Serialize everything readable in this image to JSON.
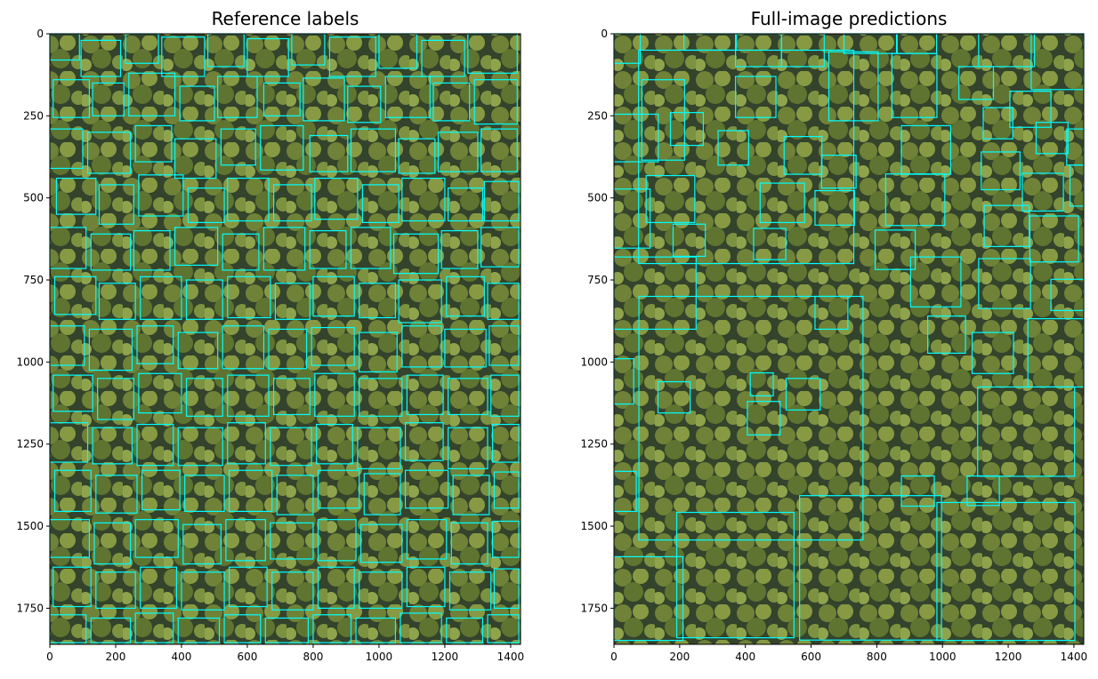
{
  "chart_data": [
    {
      "type": "detection",
      "title": "Reference labels",
      "box_color": "#00ffff",
      "xlim": [
        0,
        1430
      ],
      "ylim": [
        1860,
        0
      ],
      "xticks": [
        0,
        200,
        400,
        600,
        800,
        1000,
        1200,
        1400
      ],
      "yticks": [
        0,
        250,
        500,
        750,
        1000,
        1250,
        1500,
        1750
      ],
      "boxes": [
        [
          0,
          0,
          90,
          80
        ],
        [
          95,
          20,
          120,
          110
        ],
        [
          230,
          0,
          100,
          90
        ],
        [
          340,
          10,
          130,
          120
        ],
        [
          480,
          0,
          110,
          100
        ],
        [
          600,
          15,
          125,
          115
        ],
        [
          735,
          0,
          100,
          95
        ],
        [
          850,
          10,
          140,
          120
        ],
        [
          1000,
          0,
          115,
          105
        ],
        [
          1130,
          20,
          130,
          110
        ],
        [
          1270,
          0,
          150,
          120
        ],
        [
          10,
          140,
          110,
          115
        ],
        [
          130,
          150,
          95,
          100
        ],
        [
          240,
          120,
          140,
          130
        ],
        [
          395,
          160,
          105,
          105
        ],
        [
          510,
          130,
          120,
          125
        ],
        [
          650,
          150,
          110,
          100
        ],
        [
          770,
          135,
          125,
          130
        ],
        [
          905,
          160,
          100,
          110
        ],
        [
          1020,
          130,
          135,
          125
        ],
        [
          1165,
          150,
          110,
          115
        ],
        [
          1290,
          140,
          130,
          135
        ],
        [
          0,
          290,
          100,
          120
        ],
        [
          115,
          300,
          130,
          125
        ],
        [
          260,
          280,
          110,
          110
        ],
        [
          380,
          320,
          125,
          120
        ],
        [
          520,
          290,
          105,
          110
        ],
        [
          640,
          280,
          130,
          135
        ],
        [
          790,
          310,
          115,
          110
        ],
        [
          915,
          290,
          135,
          130
        ],
        [
          1060,
          320,
          110,
          105
        ],
        [
          1180,
          300,
          120,
          120
        ],
        [
          1310,
          290,
          110,
          130
        ],
        [
          20,
          440,
          120,
          110
        ],
        [
          150,
          460,
          105,
          120
        ],
        [
          270,
          430,
          135,
          125
        ],
        [
          420,
          470,
          110,
          105
        ],
        [
          540,
          440,
          125,
          130
        ],
        [
          680,
          460,
          115,
          110
        ],
        [
          805,
          440,
          130,
          125
        ],
        [
          950,
          460,
          110,
          115
        ],
        [
          1070,
          440,
          130,
          130
        ],
        [
          1210,
          470,
          105,
          100
        ],
        [
          1320,
          450,
          105,
          120
        ],
        [
          0,
          590,
          110,
          125
        ],
        [
          125,
          610,
          120,
          110
        ],
        [
          255,
          600,
          110,
          120
        ],
        [
          380,
          590,
          130,
          115
        ],
        [
          525,
          610,
          110,
          110
        ],
        [
          650,
          590,
          125,
          130
        ],
        [
          790,
          600,
          110,
          115
        ],
        [
          915,
          590,
          120,
          125
        ],
        [
          1045,
          610,
          135,
          120
        ],
        [
          1190,
          600,
          110,
          115
        ],
        [
          1310,
          590,
          115,
          120
        ],
        [
          15,
          740,
          125,
          115
        ],
        [
          150,
          760,
          110,
          110
        ],
        [
          275,
          740,
          125,
          130
        ],
        [
          415,
          750,
          110,
          120
        ],
        [
          540,
          740,
          130,
          125
        ],
        [
          685,
          760,
          105,
          110
        ],
        [
          800,
          740,
          125,
          120
        ],
        [
          940,
          760,
          110,
          105
        ],
        [
          1060,
          750,
          130,
          130
        ],
        [
          1205,
          740,
          115,
          120
        ],
        [
          1330,
          760,
          95,
          110
        ],
        [
          0,
          890,
          105,
          120
        ],
        [
          120,
          900,
          130,
          125
        ],
        [
          265,
          890,
          110,
          115
        ],
        [
          390,
          910,
          120,
          110
        ],
        [
          525,
          890,
          125,
          130
        ],
        [
          665,
          900,
          115,
          120
        ],
        [
          795,
          895,
          130,
          115
        ],
        [
          940,
          910,
          115,
          120
        ],
        [
          1070,
          890,
          120,
          125
        ],
        [
          1200,
          900,
          125,
          115
        ],
        [
          1335,
          890,
          90,
          120
        ],
        [
          10,
          1040,
          120,
          110
        ],
        [
          145,
          1050,
          110,
          125
        ],
        [
          270,
          1035,
          130,
          120
        ],
        [
          415,
          1050,
          110,
          115
        ],
        [
          540,
          1040,
          125,
          125
        ],
        [
          680,
          1050,
          110,
          110
        ],
        [
          805,
          1035,
          120,
          130
        ],
        [
          940,
          1050,
          130,
          115
        ],
        [
          1085,
          1040,
          110,
          120
        ],
        [
          1210,
          1050,
          120,
          110
        ],
        [
          1340,
          1040,
          85,
          125
        ],
        [
          0,
          1185,
          115,
          120
        ],
        [
          130,
          1200,
          120,
          110
        ],
        [
          265,
          1190,
          110,
          125
        ],
        [
          390,
          1200,
          135,
          115
        ],
        [
          540,
          1185,
          115,
          125
        ],
        [
          670,
          1200,
          125,
          115
        ],
        [
          810,
          1190,
          110,
          120
        ],
        [
          935,
          1200,
          130,
          125
        ],
        [
          1080,
          1185,
          115,
          115
        ],
        [
          1210,
          1200,
          120,
          125
        ],
        [
          1345,
          1190,
          80,
          115
        ],
        [
          15,
          1330,
          110,
          125
        ],
        [
          140,
          1345,
          125,
          115
        ],
        [
          280,
          1330,
          115,
          120
        ],
        [
          410,
          1345,
          120,
          110
        ],
        [
          545,
          1330,
          130,
          125
        ],
        [
          690,
          1345,
          110,
          120
        ],
        [
          815,
          1330,
          125,
          115
        ],
        [
          955,
          1340,
          110,
          125
        ],
        [
          1080,
          1330,
          130,
          115
        ],
        [
          1225,
          1345,
          110,
          120
        ],
        [
          1350,
          1335,
          75,
          110
        ],
        [
          0,
          1480,
          120,
          115
        ],
        [
          135,
          1490,
          110,
          125
        ],
        [
          260,
          1480,
          130,
          115
        ],
        [
          405,
          1495,
          115,
          120
        ],
        [
          535,
          1480,
          120,
          125
        ],
        [
          670,
          1490,
          130,
          110
        ],
        [
          815,
          1480,
          115,
          125
        ],
        [
          945,
          1495,
          125,
          115
        ],
        [
          1085,
          1480,
          120,
          120
        ],
        [
          1220,
          1490,
          110,
          125
        ],
        [
          1345,
          1485,
          80,
          110
        ],
        [
          10,
          1625,
          115,
          120
        ],
        [
          140,
          1640,
          120,
          110
        ],
        [
          275,
          1625,
          110,
          125
        ],
        [
          400,
          1640,
          130,
          115
        ],
        [
          545,
          1625,
          115,
          120
        ],
        [
          675,
          1640,
          125,
          115
        ],
        [
          815,
          1625,
          110,
          125
        ],
        [
          940,
          1640,
          130,
          110
        ],
        [
          1085,
          1625,
          115,
          120
        ],
        [
          1215,
          1640,
          125,
          115
        ],
        [
          1350,
          1630,
          75,
          120
        ],
        [
          0,
          1770,
          110,
          85
        ],
        [
          125,
          1780,
          120,
          75
        ],
        [
          260,
          1765,
          115,
          90
        ],
        [
          390,
          1780,
          125,
          75
        ],
        [
          530,
          1770,
          110,
          85
        ],
        [
          655,
          1780,
          130,
          75
        ],
        [
          800,
          1770,
          115,
          85
        ],
        [
          930,
          1780,
          120,
          75
        ],
        [
          1065,
          1765,
          125,
          90
        ],
        [
          1205,
          1780,
          110,
          75
        ],
        [
          1330,
          1770,
          95,
          85
        ]
      ]
    },
    {
      "type": "detection",
      "title": "Full-image predictions",
      "box_color": "#00ffff",
      "xlim": [
        0,
        1430
      ],
      "ylim": [
        1860,
        0
      ],
      "xticks": [
        0,
        200,
        400,
        600,
        800,
        1000,
        1200,
        1400
      ],
      "yticks": [
        0,
        250,
        500,
        750,
        1000,
        1250,
        1500,
        1750
      ],
      "boxes": [
        [
          0,
          0,
          80,
          90
        ],
        [
          75,
          50,
          655,
          650
        ],
        [
          213,
          0,
          160,
          50
        ],
        [
          370,
          0,
          140,
          100
        ],
        [
          510,
          0,
          130,
          100
        ],
        [
          654,
          55,
          150,
          210
        ],
        [
          700,
          0,
          160,
          60
        ],
        [
          846,
          60,
          137,
          195
        ],
        [
          862,
          0,
          120,
          60
        ],
        [
          1050,
          100,
          105,
          100
        ],
        [
          1110,
          0,
          170,
          100
        ],
        [
          1270,
          0,
          163,
          170
        ],
        [
          85,
          140,
          130,
          245
        ],
        [
          370,
          130,
          123,
          125
        ],
        [
          172,
          240,
          100,
          100
        ],
        [
          0,
          245,
          135,
          145
        ],
        [
          317,
          295,
          93,
          105
        ],
        [
          518,
          313,
          115,
          115
        ],
        [
          632,
          370,
          105,
          100
        ],
        [
          875,
          280,
          150,
          148
        ],
        [
          1124,
          225,
          90,
          95
        ],
        [
          1205,
          175,
          125,
          110
        ],
        [
          1285,
          270,
          97,
          95
        ],
        [
          1378,
          290,
          60,
          110
        ],
        [
          1118,
          360,
          118,
          115
        ],
        [
          1243,
          425,
          125,
          115
        ],
        [
          1388,
          400,
          42,
          125
        ],
        [
          0,
          473,
          110,
          180
        ],
        [
          98,
          432,
          148,
          143
        ],
        [
          445,
          455,
          135,
          120
        ],
        [
          612,
          478,
          120,
          105
        ],
        [
          827,
          427,
          180,
          157
        ],
        [
          1127,
          523,
          137,
          125
        ],
        [
          1266,
          555,
          148,
          140
        ],
        [
          180,
          580,
          98,
          98
        ],
        [
          425,
          593,
          98,
          95
        ],
        [
          795,
          598,
          122,
          120
        ],
        [
          0,
          680,
          250,
          220
        ],
        [
          903,
          680,
          153,
          152
        ],
        [
          1110,
          685,
          158,
          152
        ],
        [
          1330,
          748,
          100,
          95
        ],
        [
          76,
          800,
          682,
          742
        ],
        [
          612,
          800,
          100,
          100
        ],
        [
          955,
          860,
          115,
          113
        ],
        [
          1090,
          910,
          126,
          125
        ],
        [
          1260,
          868,
          170,
          208
        ],
        [
          0,
          990,
          60,
          138
        ],
        [
          134,
          1060,
          98,
          95
        ],
        [
          415,
          1033,
          70,
          70
        ],
        [
          524,
          1050,
          104,
          96
        ],
        [
          406,
          1120,
          100,
          102
        ],
        [
          1107,
          1076,
          295,
          272
        ],
        [
          875,
          1347,
          100,
          92
        ],
        [
          1075,
          1347,
          98,
          90
        ],
        [
          565,
          1407,
          432,
          440
        ],
        [
          191,
          1458,
          357,
          382
        ],
        [
          983,
          1428,
          420,
          420
        ],
        [
          0,
          1593,
          210,
          255
        ],
        [
          0,
          1333,
          68,
          122
        ]
      ]
    }
  ]
}
